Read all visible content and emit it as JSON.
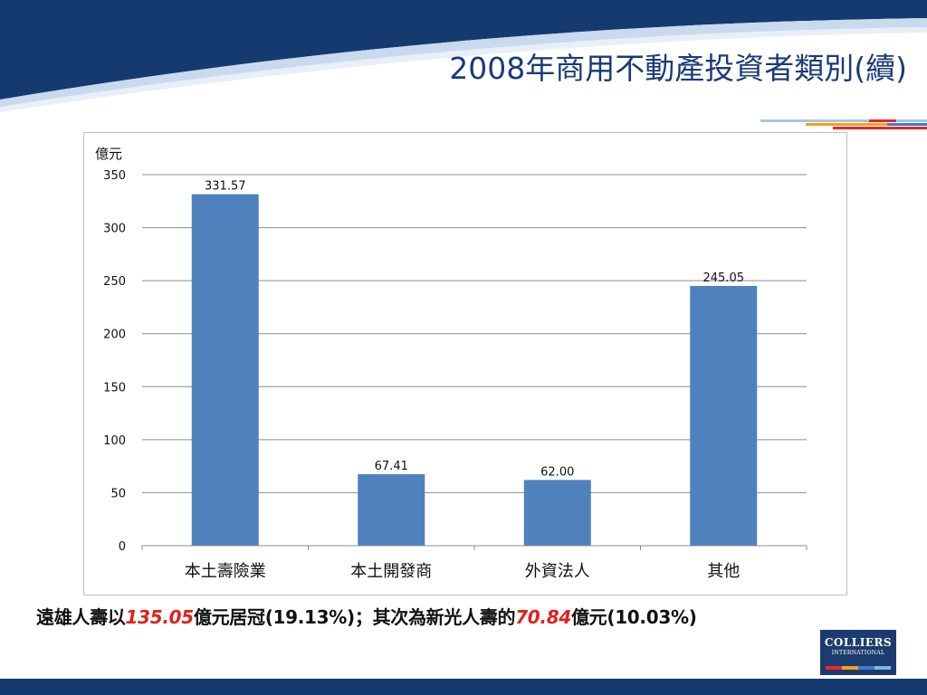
{
  "slide": {
    "title": "2008年商用不動產投資者類別(續)",
    "caption": {
      "part1": "遠雄人壽以",
      "value1": "135.05",
      "part2": "億元居冠(19.13%)；其次為新光人壽的",
      "value2": "70.84",
      "part3": "億元(10.03%)"
    },
    "logo": {
      "line1": "COLLIERS",
      "line2": "INTERNATIONAL"
    }
  },
  "colors": {
    "bar": "#4f81bd",
    "title": "#1a3b78",
    "highlight": "#e02020",
    "band": "#143a70"
  },
  "chart_data": {
    "type": "bar",
    "unit_label": "億元",
    "categories": [
      "本土壽險業",
      "本土開發商",
      "外資法人",
      "其他"
    ],
    "values": [
      331.57,
      67.41,
      62.0,
      245.05
    ],
    "data_labels": [
      "331.57",
      "67.41",
      "62.00",
      "245.05"
    ],
    "ylim": [
      0,
      350
    ],
    "yticks": [
      0,
      50,
      100,
      150,
      200,
      250,
      300,
      350
    ],
    "grid": true,
    "legend": "none"
  }
}
